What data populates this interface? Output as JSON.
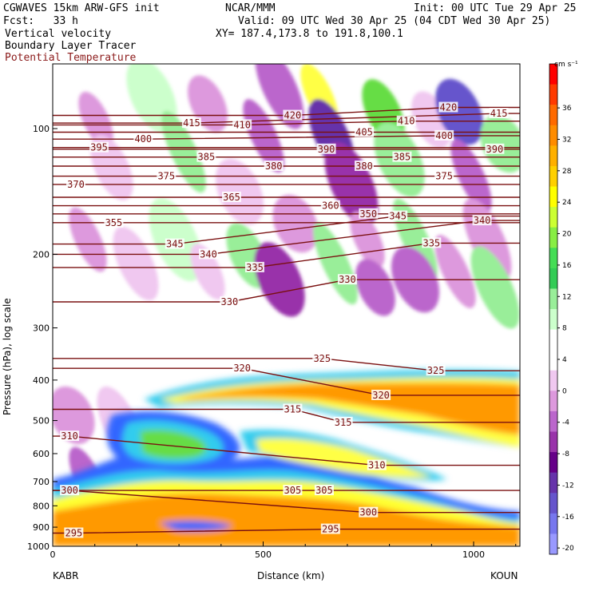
{
  "header": {
    "line1_left": "CGWAVES 15km ARW-GFS init",
    "line1_mid": "NCAR/MMM",
    "line1_right": "Init: 00 UTC Tue 29 Apr 25",
    "line2_left": "Fcst:   33 h",
    "line2_right": "Valid: 09 UTC Wed 30 Apr 25 (04 CDT Wed 30 Apr 25)",
    "line3_left": "Vertical velocity",
    "line3_right": "XY= 187.4,173.8 to 191.8,100.1",
    "line4_left": "Boundary Layer Tracer",
    "line5_left": "Potential Temperature"
  },
  "colors": {
    "theta_contour": "#7a1010",
    "header_red": "#8b1a1a"
  },
  "chart_data": {
    "type": "heatmap",
    "ylabel": "Pressure (hPa), log scale",
    "xlabel": "Distance (km)",
    "x_start_label": "KABR",
    "x_end_label": "KOUN",
    "xlim": [
      0,
      1110
    ],
    "ylim": [
      1000,
      70
    ],
    "y_scale": "log",
    "x_ticks": [
      0,
      500,
      1000
    ],
    "y_ticks": [
      100,
      200,
      300,
      400,
      500,
      600,
      700,
      800,
      900,
      1000
    ],
    "colorbar": {
      "unit": "cm s⁻¹",
      "labels": [
        "36",
        "32",
        "28",
        "24",
        "20",
        "16",
        "12",
        "8",
        "4",
        "0",
        "-4",
        "-8",
        "-12",
        "-16",
        "-20"
      ],
      "colors": [
        "#ff0000",
        "#ff3a00",
        "#ff6a00",
        "#ff8c00",
        "#ffb000",
        "#ffd000",
        "#ffff00",
        "#ccff33",
        "#88ee44",
        "#44dd55",
        "#33cc55",
        "#99ee99",
        "#ccffcc",
        "#ffffff",
        "#ffffff",
        "#f0c8f0",
        "#dd99dd",
        "#bb66cc",
        "#9933aa",
        "#660088",
        "#6633aa",
        "#6655cc",
        "#7777ee",
        "#9999ff"
      ]
    },
    "theta_contours": [
      {
        "level": "295",
        "x": 50,
        "p": 930
      },
      {
        "level": "295",
        "x": 660,
        "p": 910
      },
      {
        "level": "300",
        "x": 40,
        "p": 735
      },
      {
        "level": "300",
        "x": 750,
        "p": 830
      },
      {
        "level": "305",
        "x": 570,
        "p": 735
      },
      {
        "level": "305",
        "x": 645,
        "p": 735
      },
      {
        "level": "310",
        "x": 40,
        "p": 545
      },
      {
        "level": "310",
        "x": 770,
        "p": 640
      },
      {
        "level": "315",
        "x": 570,
        "p": 470
      },
      {
        "level": "315",
        "x": 690,
        "p": 505
      },
      {
        "level": "320",
        "x": 450,
        "p": 375
      },
      {
        "level": "320",
        "x": 780,
        "p": 435
      },
      {
        "level": "325",
        "x": 640,
        "p": 355
      },
      {
        "level": "325",
        "x": 910,
        "p": 380
      },
      {
        "level": "330",
        "x": 420,
        "p": 260
      },
      {
        "level": "330",
        "x": 700,
        "p": 230
      },
      {
        "level": "335",
        "x": 480,
        "p": 215
      },
      {
        "level": "335",
        "x": 900,
        "p": 188
      },
      {
        "level": "340",
        "x": 370,
        "p": 200
      },
      {
        "level": "340",
        "x": 1020,
        "p": 166
      },
      {
        "level": "345",
        "x": 290,
        "p": 189
      },
      {
        "level": "345",
        "x": 820,
        "p": 162
      },
      {
        "level": "350",
        "x": 750,
        "p": 160
      },
      {
        "level": "355",
        "x": 145,
        "p": 168
      },
      {
        "level": "360",
        "x": 660,
        "p": 153
      },
      {
        "level": "365",
        "x": 425,
        "p": 146
      },
      {
        "level": "370",
        "x": 55,
        "p": 136
      },
      {
        "level": "375",
        "x": 270,
        "p": 130
      },
      {
        "level": "375",
        "x": 930,
        "p": 130
      },
      {
        "level": "380",
        "x": 525,
        "p": 123
      },
      {
        "level": "380",
        "x": 740,
        "p": 123
      },
      {
        "level": "385",
        "x": 365,
        "p": 117
      },
      {
        "level": "385",
        "x": 830,
        "p": 117
      },
      {
        "level": "390",
        "x": 650,
        "p": 112
      },
      {
        "level": "390",
        "x": 1050,
        "p": 112
      },
      {
        "level": "395",
        "x": 110,
        "p": 111
      },
      {
        "level": "400",
        "x": 215,
        "p": 106
      },
      {
        "level": "400",
        "x": 930,
        "p": 104
      },
      {
        "level": "405",
        "x": 740,
        "p": 102
      },
      {
        "level": "410",
        "x": 450,
        "p": 98
      },
      {
        "level": "410",
        "x": 840,
        "p": 96
      },
      {
        "level": "415",
        "x": 330,
        "p": 97
      },
      {
        "level": "415",
        "x": 1060,
        "p": 92
      },
      {
        "level": "420",
        "x": 570,
        "p": 93
      },
      {
        "level": "420",
        "x": 940,
        "p": 89
      }
    ]
  }
}
